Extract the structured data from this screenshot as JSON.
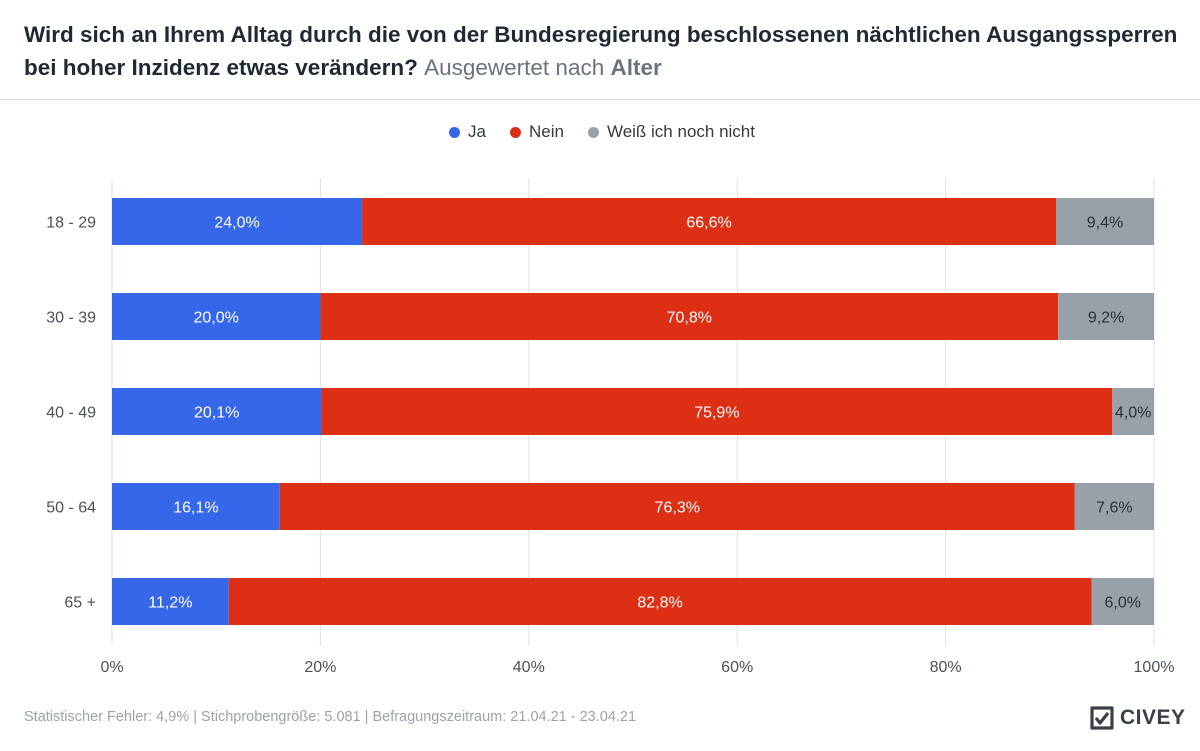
{
  "header": {
    "title": "Wird sich an Ihrem Alltag durch die von der Bundesregierung beschlossenen nächtlichen Ausgangssperren bei hoher Inzidenz etwas verändern?",
    "subtitle_prefix": "Ausgewertet nach",
    "subtitle_group": "Alter"
  },
  "colors": {
    "ja": "#3567e8",
    "nein": "#dc2f14",
    "weiss_nicht": "#98a1aa",
    "grid": "#dfe2e6",
    "axis_text": "#4a525a"
  },
  "chart_data": {
    "type": "bar",
    "orientation": "horizontal",
    "stacked": true,
    "title": "Wird sich an Ihrem Alltag durch die von der Bundesregierung beschlossenen nächtlichen Ausgangssperren bei hoher Inzidenz etwas verändern? Ausgewertet nach Alter",
    "categories": [
      "18 - 29",
      "30 - 39",
      "40 - 49",
      "50 - 64",
      "65 +"
    ],
    "series": [
      {
        "name": "Ja",
        "key": "ja",
        "values": [
          24.0,
          20.0,
          20.1,
          16.1,
          11.2
        ],
        "labels": [
          "24,0%",
          "20,0%",
          "20,1%",
          "16,1%",
          "11,2%"
        ]
      },
      {
        "name": "Nein",
        "key": "nein",
        "values": [
          66.6,
          70.8,
          75.9,
          76.3,
          82.8
        ],
        "labels": [
          "66,6%",
          "70,8%",
          "75,9%",
          "76,3%",
          "82,8%"
        ]
      },
      {
        "name": "Weiß ich noch nicht",
        "key": "weiss_nicht",
        "values": [
          9.4,
          9.2,
          4.0,
          7.6,
          6.0
        ],
        "labels": [
          "9,4%",
          "9,2%",
          "4,0%",
          "7,6%",
          "6,0%"
        ]
      }
    ],
    "xlim": [
      0,
      100
    ],
    "xticks": [
      "0%",
      "20%",
      "40%",
      "60%",
      "80%",
      "100%"
    ],
    "xlabel": "",
    "ylabel": "",
    "grid": true,
    "legend_position": "top-center"
  },
  "footer": {
    "note": "Statistischer Fehler: 4,9% | Stichprobengröße: 5.081 | Befragungszeitraum: 21.04.21 - 23.04.21",
    "brand": "CIVEY"
  }
}
